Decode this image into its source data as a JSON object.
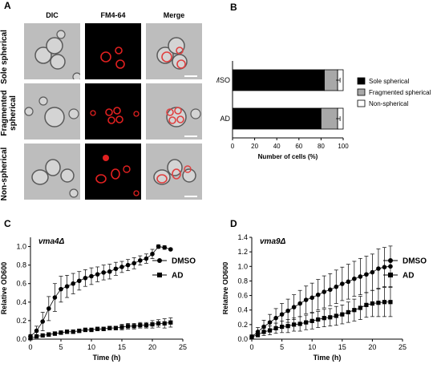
{
  "panels": {
    "a": "A",
    "b": "B",
    "c": "C",
    "d": "D"
  },
  "panelA": {
    "columns": [
      "DIC",
      "FM4-64",
      "Merge"
    ],
    "rows": [
      {
        "line1": "Sole spherical",
        "line2": ""
      },
      {
        "line1": "Fragmented",
        "line2": "spherical"
      },
      {
        "line1": "Non-spherical",
        "line2": ""
      }
    ]
  },
  "chart_data": [
    {
      "type": "bar",
      "orientation": "horizontal",
      "stacked": true,
      "categories": [
        "DMSO",
        "AD"
      ],
      "series": [
        {
          "name": "Sole spherical",
          "values": [
            83,
            80
          ],
          "color": "#000000"
        },
        {
          "name": "Fragmented spherical",
          "values": [
            12,
            15
          ],
          "color": "#a8a8a8"
        },
        {
          "name": "Non-spherical",
          "values": [
            5,
            5
          ],
          "color": "#ffffff"
        }
      ],
      "xlabel": "Number of cells (%)",
      "xlim": [
        0,
        100
      ],
      "xticks": [
        0,
        20,
        40,
        60,
        80,
        100
      ],
      "legend": "right"
    },
    {
      "type": "line",
      "strain": "vma4Δ",
      "xlabel": "Time (h)",
      "ylabel": "Relative OD600",
      "xlim": [
        0,
        25
      ],
      "ylim": [
        0,
        1.1
      ],
      "xticks": [
        0,
        5,
        10,
        15,
        20,
        25
      ],
      "yticks": [
        "0.0",
        "0.2",
        "0.4",
        "0.6",
        "0.8",
        "1.0"
      ],
      "x": [
        0,
        1,
        2,
        3,
        4,
        5,
        6,
        7,
        8,
        9,
        10,
        11,
        12,
        13,
        14,
        15,
        16,
        17,
        18,
        19,
        20,
        21,
        22,
        23
      ],
      "series": [
        {
          "name": "DMSO",
          "marker": "circle",
          "values": [
            0.03,
            0.09,
            0.19,
            0.33,
            0.45,
            0.54,
            0.57,
            0.6,
            0.63,
            0.66,
            0.68,
            0.7,
            0.72,
            0.73,
            0.76,
            0.78,
            0.8,
            0.82,
            0.85,
            0.87,
            0.92,
            1.0,
            0.99,
            0.97
          ],
          "error": [
            0.02,
            0.05,
            0.1,
            0.13,
            0.15,
            0.14,
            0.12,
            0.11,
            0.1,
            0.09,
            0.09,
            0.08,
            0.08,
            0.08,
            0.07,
            0.06,
            0.06,
            0.06,
            0.05,
            0.05,
            0.05,
            0.02,
            0.02,
            0.01
          ]
        },
        {
          "name": "AD",
          "marker": "square",
          "values": [
            0.01,
            0.03,
            0.04,
            0.05,
            0.06,
            0.07,
            0.08,
            0.08,
            0.09,
            0.1,
            0.1,
            0.11,
            0.11,
            0.12,
            0.12,
            0.13,
            0.14,
            0.14,
            0.15,
            0.15,
            0.16,
            0.17,
            0.17,
            0.18
          ],
          "error": [
            0.01,
            0.01,
            0.01,
            0.02,
            0.02,
            0.02,
            0.02,
            0.02,
            0.02,
            0.02,
            0.02,
            0.02,
            0.02,
            0.02,
            0.02,
            0.03,
            0.03,
            0.03,
            0.03,
            0.03,
            0.04,
            0.04,
            0.05,
            0.05
          ]
        }
      ]
    },
    {
      "type": "line",
      "strain": "vma9Δ",
      "xlabel": "Time (h)",
      "ylabel": "Relative OD600",
      "xlim": [
        0,
        25
      ],
      "ylim": [
        0,
        1.4
      ],
      "xticks": [
        0,
        5,
        10,
        15,
        20,
        25
      ],
      "yticks": [
        "0.0",
        "0.2",
        "0.4",
        "0.6",
        "0.8",
        "1.0",
        "1.2",
        "1.4"
      ],
      "x": [
        0,
        1,
        2,
        3,
        4,
        5,
        6,
        7,
        8,
        9,
        10,
        11,
        12,
        13,
        14,
        15,
        16,
        17,
        18,
        19,
        20,
        21,
        22,
        23
      ],
      "series": [
        {
          "name": "DMSO",
          "marker": "circle",
          "values": [
            0.03,
            0.1,
            0.17,
            0.23,
            0.29,
            0.34,
            0.39,
            0.44,
            0.49,
            0.54,
            0.57,
            0.61,
            0.65,
            0.68,
            0.72,
            0.76,
            0.79,
            0.83,
            0.86,
            0.89,
            0.92,
            0.97,
            0.99,
            1.0
          ],
          "error": [
            0.03,
            0.06,
            0.09,
            0.11,
            0.13,
            0.15,
            0.16,
            0.17,
            0.18,
            0.19,
            0.2,
            0.21,
            0.22,
            0.22,
            0.23,
            0.23,
            0.24,
            0.24,
            0.25,
            0.25,
            0.25,
            0.27,
            0.27,
            0.28
          ]
        },
        {
          "name": "AD",
          "marker": "square",
          "values": [
            0.03,
            0.06,
            0.1,
            0.12,
            0.15,
            0.17,
            0.18,
            0.2,
            0.21,
            0.23,
            0.25,
            0.27,
            0.29,
            0.3,
            0.32,
            0.34,
            0.37,
            0.4,
            0.43,
            0.47,
            0.49,
            0.5,
            0.51,
            0.51
          ],
          "error": [
            0.02,
            0.03,
            0.05,
            0.06,
            0.07,
            0.08,
            0.09,
            0.09,
            0.1,
            0.1,
            0.11,
            0.11,
            0.12,
            0.12,
            0.13,
            0.13,
            0.14,
            0.15,
            0.16,
            0.17,
            0.18,
            0.19,
            0.2,
            0.2
          ]
        }
      ]
    }
  ]
}
